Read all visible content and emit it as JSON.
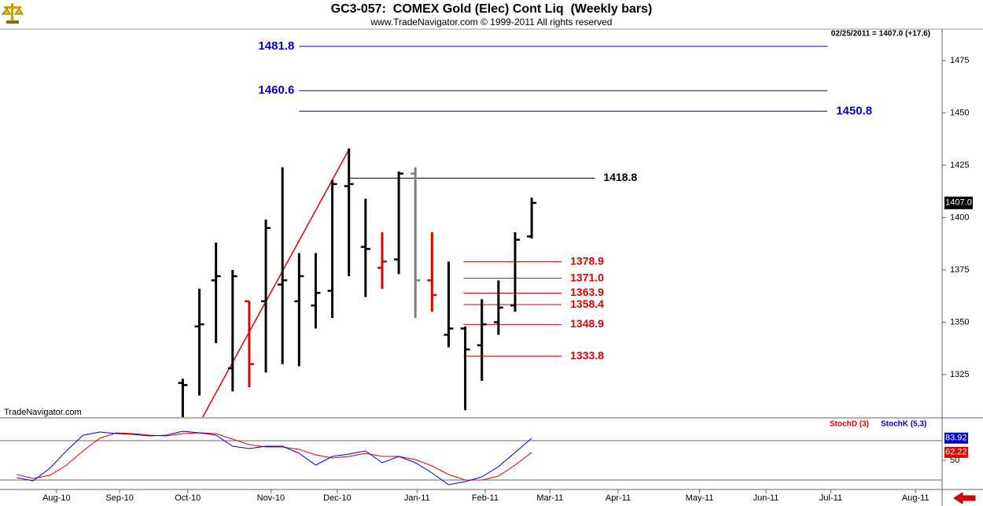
{
  "chart_data": [
    {
      "type": "ohlc",
      "title": "GC3-057:  COMEX Gold (Elec) Cont Liq  (Weekly bars)",
      "subtitle": "www.TradeNavigator.com © 1999-2011 All rights reserved",
      "last_info": "02/25/2011 = 1407.0 (+17.6)",
      "watermark": "TradeNavigator.com",
      "x": [
        11,
        12,
        13,
        14,
        15,
        16,
        17,
        18,
        19,
        20,
        21,
        22,
        23,
        24,
        25,
        26,
        27,
        28,
        29,
        30,
        31,
        32
      ],
      "open": [
        1321,
        1348,
        1370,
        1328,
        1360,
        1360,
        1368,
        1360,
        1358,
        1365,
        1415,
        1386,
        1376,
        1380,
        1421,
        1370,
        1344,
        1347,
        1339,
        1350,
        1358,
        1391
      ],
      "high": [
        1323,
        1366,
        1388,
        1375,
        1360,
        1399,
        1424,
        1383,
        1383,
        1418,
        1433,
        1409,
        1393,
        1422,
        1424,
        1393,
        1379,
        1348,
        1361,
        1370,
        1393,
        1409.5
      ],
      "low": [
        1300,
        1315,
        1340,
        1317,
        1319,
        1326,
        1330,
        1329,
        1347,
        1352,
        1372,
        1362,
        1366,
        1373,
        1352,
        1355,
        1338,
        1308,
        1322,
        1344,
        1355,
        1390
      ],
      "close": [
        1320,
        1349,
        1372,
        1372,
        1330,
        1395,
        1370,
        1372,
        1364,
        1416,
        1416,
        1385,
        1379,
        1421,
        1370,
        1363,
        1347,
        1337,
        1349,
        1357,
        1389.4,
        1407
      ],
      "colors": [
        "#000000",
        "#000000",
        "#000000",
        "#000000",
        "#e00000",
        "#000000",
        "#000000",
        "#000000",
        "#000000",
        "#000000",
        "#000000",
        "#000000",
        "#e00000",
        "#000000",
        "#808080",
        "#e00000",
        "#000000",
        "#000000",
        "#000000",
        "#000000",
        "#000000",
        "#000000"
      ],
      "xlim": [
        0,
        56.7
      ],
      "ylim": [
        1304.7,
        1490
      ],
      "yticks": [
        1325,
        1350,
        1375,
        1400,
        1425,
        1450,
        1475
      ],
      "last_value": {
        "value": 1407,
        "label": "1407.0"
      },
      "trendline": {
        "color": "#e00000",
        "x": [
          12.2,
          21
        ],
        "y": [
          1304.7,
          1432.5
        ]
      },
      "levels": [
        {
          "value": 1481.8,
          "color": "#0000cc",
          "x": [
            18,
            49.8
          ],
          "label_side": "left"
        },
        {
          "value": 1460.6,
          "color": "#0000cc",
          "x": [
            18,
            49.8
          ],
          "label_side": "left"
        },
        {
          "value": 1450.8,
          "color": "#0000cc",
          "x": [
            18,
            49.8
          ],
          "label_side": "right"
        },
        {
          "value": 1418.8,
          "color": "#000000",
          "x": [
            21,
            35.8
          ],
          "label_side": "right"
        },
        {
          "value": 1378.9,
          "color": "#e00000",
          "x": [
            27.9,
            33.8
          ],
          "label_side": "right"
        },
        {
          "value": 1371,
          "label": "1371.0",
          "color": "#e00000",
          "x": [
            27.9,
            33.8
          ],
          "label_side": "right"
        },
        {
          "value": 1363.9,
          "color": "#e00000",
          "x": [
            27.9,
            33.8
          ],
          "label_side": "right"
        },
        {
          "value": 1358.4,
          "color": "#e00000",
          "x": [
            27.9,
            33.8
          ],
          "label_side": "right"
        },
        {
          "value": 1348.9,
          "color": "#e00000",
          "x": [
            27.9,
            33.8
          ],
          "label_side": "right"
        },
        {
          "value": 1333.8,
          "color": "#e00000",
          "x": [
            27.9,
            33.8
          ],
          "label_side": "right"
        }
      ]
    },
    {
      "type": "line",
      "x": [
        1,
        2,
        3,
        4,
        5,
        6,
        7,
        8,
        9,
        10,
        11,
        12,
        13,
        14,
        15,
        16,
        17,
        18,
        19,
        20,
        21,
        22,
        23,
        24,
        25,
        26,
        27,
        28,
        29,
        30,
        31,
        32
      ],
      "series": [
        {
          "name": "StochD (3)",
          "color": "#e00000",
          "values": [
            28.4,
            22.4,
            27.2,
            42.8,
            64.4,
            83.6,
            92,
            90.8,
            88.4,
            87.2,
            90.8,
            92,
            90.8,
            82.4,
            74,
            70.4,
            70.4,
            66.8,
            58.4,
            53.6,
            56,
            60.8,
            56,
            56,
            51.2,
            41.6,
            28.4,
            20,
            20,
            26,
            42.8,
            62.22
          ]
        },
        {
          "name": "StochK (5,3)",
          "color": "#0000cc",
          "values": [
            23.6,
            18.8,
            38,
            64.4,
            88.4,
            93.2,
            90.8,
            89.6,
            87.2,
            88.4,
            94.4,
            92,
            88.4,
            71.6,
            68,
            71.6,
            71.6,
            60.8,
            42.8,
            56,
            59.6,
            64.4,
            46.4,
            56,
            46.4,
            30.8,
            12.8,
            17.6,
            24.8,
            40.4,
            62,
            83.92
          ]
        }
      ],
      "xlim": [
        0,
        56.7
      ],
      "ylim": [
        5.6,
        112.4
      ],
      "yticks": [
        50
      ],
      "hlines": [
        20,
        80
      ],
      "xticks": [
        {
          "value": 3.4,
          "label": "Aug-10"
        },
        {
          "value": 7.2,
          "label": "Sep-10"
        },
        {
          "value": 11.3,
          "label": "Oct-10"
        },
        {
          "value": 16.3,
          "label": "Nov-10"
        },
        {
          "value": 20.3,
          "label": "Dec-10"
        },
        {
          "value": 25.1,
          "label": "Jan-11"
        },
        {
          "value": 29.2,
          "label": "Feb-11"
        },
        {
          "value": 33.1,
          "label": "Mar-11"
        },
        {
          "value": 37.2,
          "label": "Apr-11"
        },
        {
          "value": 42.1,
          "label": "May-11"
        },
        {
          "value": 46.1,
          "label": "Jun-11"
        },
        {
          "value": 50,
          "label": "Jul-11"
        },
        {
          "value": 55.1,
          "label": "Aug-11"
        }
      ]
    }
  ]
}
